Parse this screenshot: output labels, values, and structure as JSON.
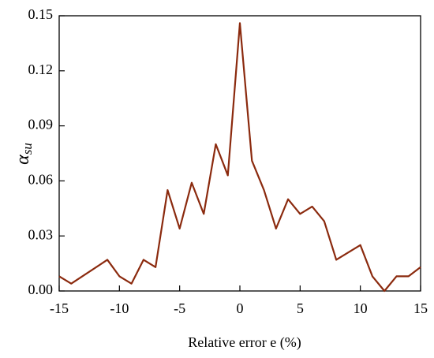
{
  "chart_data": {
    "type": "line",
    "xlabel": "Relative error e (%)",
    "ylabel": {
      "symbol": "α",
      "subscript": "su"
    },
    "x": [
      -15,
      -14,
      -11,
      -10,
      -9,
      -8,
      -7,
      -6,
      -5,
      -4,
      -3,
      -2,
      -1,
      0,
      1,
      2,
      3,
      4,
      5,
      6,
      7,
      8,
      10,
      11,
      12,
      13,
      14,
      15
    ],
    "series": [
      {
        "color": "#8b2a0e",
        "values": [
          0.008,
          0.004,
          0.017,
          0.008,
          0.004,
          0.017,
          0.013,
          0.055,
          0.034,
          0.059,
          0.042,
          0.08,
          0.063,
          0.146,
          0.071,
          0.055,
          0.034,
          0.05,
          0.042,
          0.046,
          0.038,
          0.017,
          0.025,
          0.008,
          0.0,
          0.008,
          0.008,
          0.013
        ]
      }
    ],
    "xlim": [
      -15,
      15
    ],
    "xticks": [
      -15,
      -10,
      -5,
      0,
      5,
      10,
      15
    ],
    "ylim": [
      0,
      0.15
    ],
    "yticks": [
      {
        "value": 0,
        "label": "0.00"
      },
      {
        "value": 0.03,
        "label": "0.03"
      },
      {
        "value": 0.06,
        "label": "0.06"
      },
      {
        "value": 0.09,
        "label": "0.09"
      },
      {
        "value": 0.12,
        "label": "0.12"
      },
      {
        "value": 0.15,
        "label": "0.15"
      }
    ]
  }
}
